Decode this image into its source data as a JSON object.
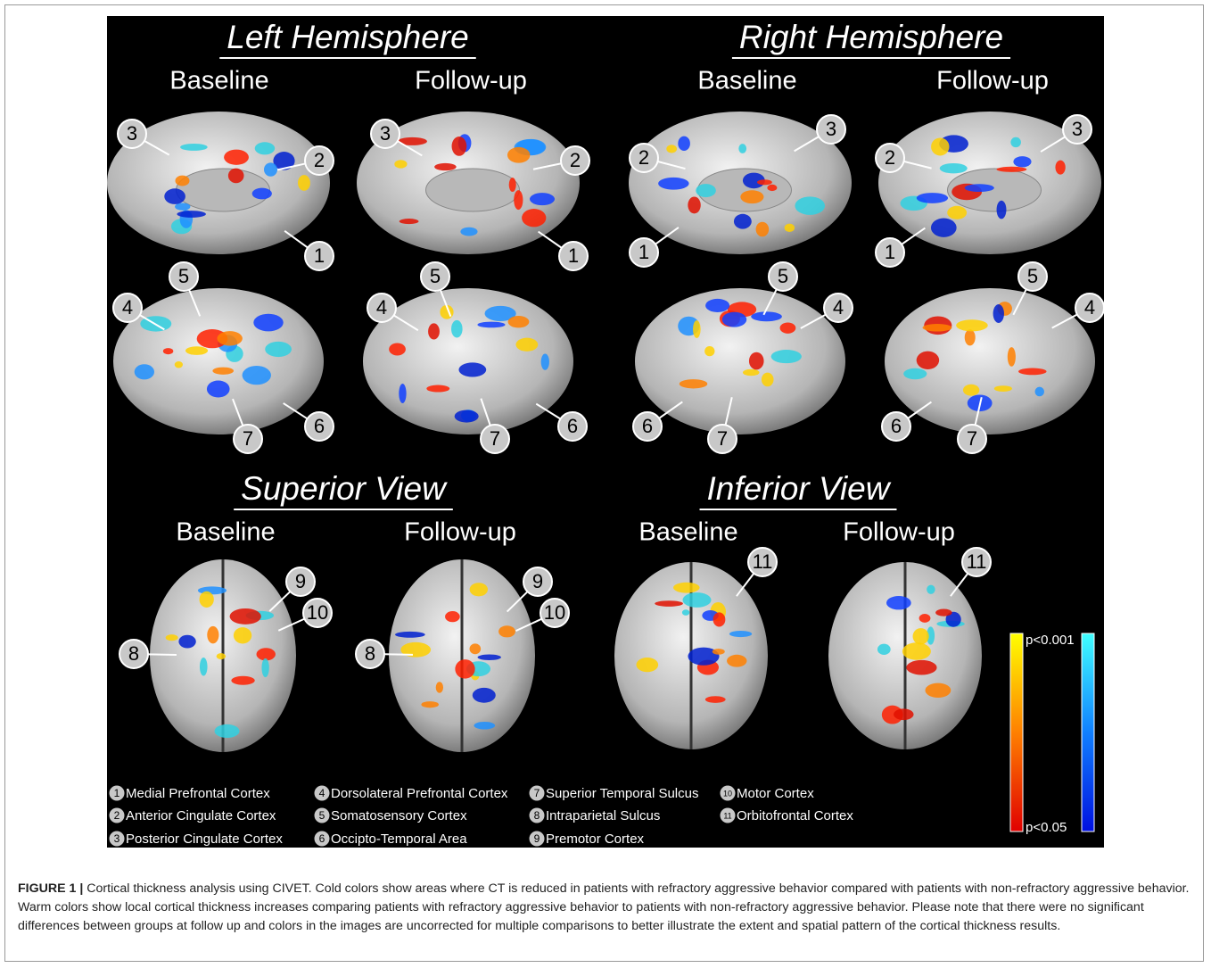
{
  "figure": {
    "sections": [
      {
        "title": "Left Hemisphere",
        "columns": [
          "Baseline",
          "Follow-up"
        ]
      },
      {
        "title": "Right Hemisphere",
        "columns": [
          "Baseline",
          "Follow-up"
        ]
      },
      {
        "title": "Superior View",
        "columns": [
          "Baseline",
          "Follow-up"
        ]
      },
      {
        "title": "Inferior View",
        "columns": [
          "Baseline",
          "Follow-up"
        ]
      }
    ],
    "brains": [
      {
        "callouts": [
          "3",
          "2",
          "1"
        ]
      },
      {
        "callouts": [
          "3",
          "2",
          "1"
        ]
      },
      {
        "callouts": [
          "2",
          "3",
          "1"
        ]
      },
      {
        "callouts": [
          "2",
          "3",
          "1"
        ]
      },
      {
        "callouts": [
          "5",
          "4",
          "6",
          "7"
        ]
      },
      {
        "callouts": [
          "5",
          "4",
          "7",
          "6"
        ]
      },
      {
        "callouts": [
          "5",
          "4",
          "6",
          "7"
        ]
      },
      {
        "callouts": [
          "5",
          "4",
          "6",
          "7"
        ]
      },
      {
        "callouts": [
          "9",
          "10",
          "8"
        ]
      },
      {
        "callouts": [
          "9",
          "10",
          "8"
        ]
      },
      {
        "callouts": [
          "11"
        ]
      },
      {
        "callouts": [
          "11"
        ]
      }
    ],
    "colorbar": {
      "top": "p<0.001",
      "bottom": "p<0.05"
    },
    "legend": [
      {
        "number": "1",
        "label": "Medial Prefrontal Cortex"
      },
      {
        "number": "2",
        "label": "Anterior Cingulate Cortex"
      },
      {
        "number": "3",
        "label": "Posterior Cingulate Cortex"
      },
      {
        "number": "4",
        "label": "Dorsolateral Prefrontal Cortex"
      },
      {
        "number": "5",
        "label": "Somatosensory Cortex"
      },
      {
        "number": "6",
        "label": "Occipto-Temporal Area"
      },
      {
        "number": "7",
        "label": "Superior Temporal Sulcus"
      },
      {
        "number": "8",
        "label": "Intraparietal Sulcus"
      },
      {
        "number": "9",
        "label": "Premotor Cortex"
      },
      {
        "number": "10",
        "label": "Motor Cortex"
      },
      {
        "number": "11",
        "label": "Orbitofrontal Cortex"
      }
    ],
    "caption": {
      "label": "FIGURE 1 |",
      "text": "Cortical thickness analysis using CIVET. Cold colors show areas where CT is reduced in patients with refractory aggressive behavior compared with patients with non-refractory aggressive behavior. Warm colors show local cortical thickness increases comparing patients with refractory aggressive behavior to patients with non-refractory aggressive behavior. Please note that there were no significant differences between groups at follow up and colors in the images are uncorrected for multiple comparisons to better illustrate the extent and spatial pattern of the cortical thickness results."
    }
  }
}
